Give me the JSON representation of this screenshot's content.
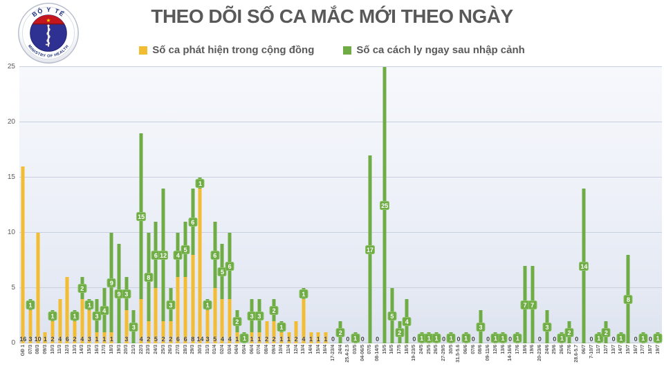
{
  "title": "THEO DÕI SỐ CA MẮC MỚI THEO NGÀY",
  "logo": {
    "top_text": "BỘ Y TẾ",
    "bottom_text": "MINISTRY OF HEALTH"
  },
  "legend": [
    {
      "label": "Số ca phát hiện trong cộng đồng",
      "color": "#f2bc33"
    },
    {
      "label": "Số ca cách ly ngay sau nhập cảnh",
      "color": "#6fac46"
    }
  ],
  "colors": {
    "community": "#f2bc33",
    "imported": "#6fac46",
    "badge_bg": "#6fac46",
    "badge_border": "#8fc468",
    "title_text": "#595959",
    "grid": "#c9cfdc"
  },
  "chart_data": {
    "type": "bar",
    "stacked": true,
    "title": "THEO DÕI SỐ CA MẮC MỚI THEO NGÀY",
    "ylim": [
      0,
      25
    ],
    "yticks": [
      0,
      5,
      10,
      15,
      20,
      25
    ],
    "grid": true,
    "legend_position": "top",
    "series_names": [
      "Số ca phát hiện trong cộng đồng",
      "Số ca cách ly ngay sau nhập cảnh"
    ],
    "bars": [
      {
        "label": "GĐ 1",
        "community": 16,
        "imported": 0
      },
      {
        "label": "07/3",
        "community": 3,
        "imported": 1
      },
      {
        "label": "08/3",
        "community": 10,
        "imported": 0
      },
      {
        "label": "09/3",
        "community": 1,
        "imported": 0
      },
      {
        "label": "10/3",
        "community": 2,
        "imported": 1
      },
      {
        "label": "11/3",
        "community": 4,
        "imported": 0
      },
      {
        "label": "12/3",
        "community": 6,
        "imported": 0
      },
      {
        "label": "13/3",
        "community": 2,
        "imported": 1
      },
      {
        "label": "14/3",
        "community": 4,
        "imported": 2
      },
      {
        "label": "15/3",
        "community": 3,
        "imported": 1
      },
      {
        "label": "16/3",
        "community": 1,
        "imported": 3
      },
      {
        "label": "17/3",
        "community": 1,
        "imported": 4
      },
      {
        "label": "18/3",
        "community": 1,
        "imported": 9
      },
      {
        "label": "19/3",
        "community": 0,
        "imported": 9
      },
      {
        "label": "20/3",
        "community": 3,
        "imported": 3
      },
      {
        "label": "21/3",
        "community": 0,
        "imported": 3
      },
      {
        "label": "22/3",
        "community": 4,
        "imported": 15
      },
      {
        "label": "23/3",
        "community": 2,
        "imported": 8
      },
      {
        "label": "24/3",
        "community": 5,
        "imported": 6
      },
      {
        "label": "25/3",
        "community": 2,
        "imported": 12
      },
      {
        "label": "26/3",
        "community": 2,
        "imported": 3
      },
      {
        "label": "27/3",
        "community": 6,
        "imported": 4
      },
      {
        "label": "28/3",
        "community": 6,
        "imported": 5
      },
      {
        "label": "29/3",
        "community": 8,
        "imported": 6
      },
      {
        "label": "30/3",
        "community": 14,
        "imported": 1
      },
      {
        "label": "31/3",
        "community": 3,
        "imported": 1
      },
      {
        "label": "01/4",
        "community": 5,
        "imported": 6
      },
      {
        "label": "02/4",
        "community": 4,
        "imported": 5
      },
      {
        "label": "03/4",
        "community": 4,
        "imported": 6
      },
      {
        "label": "04/4",
        "community": 1,
        "imported": 2
      },
      {
        "label": "05/4",
        "community": 0,
        "imported": 1
      },
      {
        "label": "06/4",
        "community": 1,
        "imported": 3
      },
      {
        "label": "07/4",
        "community": 1,
        "imported": 3
      },
      {
        "label": "08/4",
        "community": 2,
        "imported": 0
      },
      {
        "label": "09/4",
        "community": 2,
        "imported": 2
      },
      {
        "label": "10/4",
        "community": 1,
        "imported": 1
      },
      {
        "label": "11/4",
        "community": 1,
        "imported": 0
      },
      {
        "label": "12/4",
        "community": 2,
        "imported": 0
      },
      {
        "label": "13/4",
        "community": 4,
        "imported": 1
      },
      {
        "label": "14/4",
        "community": 1,
        "imported": 0
      },
      {
        "label": "15/4",
        "community": 1,
        "imported": 0
      },
      {
        "label": "16/4",
        "community": 1,
        "imported": 0
      },
      {
        "label": "17-23/4",
        "community": 0,
        "imported": 0
      },
      {
        "label": "24/4",
        "community": 0,
        "imported": 2
      },
      {
        "label": "25.4-2.5",
        "community": 0,
        "imported": 0
      },
      {
        "label": "03/5",
        "community": 0,
        "imported": 1
      },
      {
        "label": "04-06/5",
        "community": 0,
        "imported": 0
      },
      {
        "label": "07/5",
        "community": 0,
        "imported": 17
      },
      {
        "label": "08-14/5",
        "community": 0,
        "imported": 0
      },
      {
        "label": "15/5",
        "community": 0,
        "imported": 25
      },
      {
        "label": "16/5",
        "community": 0,
        "imported": 5
      },
      {
        "label": "17/5",
        "community": 0,
        "imported": 2
      },
      {
        "label": "18/5",
        "community": 0,
        "imported": 4
      },
      {
        "label": "19-23/5",
        "community": 0,
        "imported": 0
      },
      {
        "label": "24/5",
        "community": 0,
        "imported": 1
      },
      {
        "label": "25/5",
        "community": 0,
        "imported": 1
      },
      {
        "label": "26/5",
        "community": 0,
        "imported": 1
      },
      {
        "label": "27-29/5",
        "community": 0,
        "imported": 0
      },
      {
        "label": "30/5",
        "community": 0,
        "imported": 1
      },
      {
        "label": "31.5-5.6",
        "community": 0,
        "imported": 0
      },
      {
        "label": "06/6",
        "community": 0,
        "imported": 1
      },
      {
        "label": "07/6",
        "community": 0,
        "imported": 0
      },
      {
        "label": "08/6",
        "community": 0,
        "imported": 3
      },
      {
        "label": "09-11/6",
        "community": 0,
        "imported": 0
      },
      {
        "label": "12/6",
        "community": 0,
        "imported": 1
      },
      {
        "label": "13/6",
        "community": 0,
        "imported": 1
      },
      {
        "label": "14-16/6",
        "community": 0,
        "imported": 0
      },
      {
        "label": "17/6",
        "community": 0,
        "imported": 1
      },
      {
        "label": "18/6",
        "community": 0,
        "imported": 7
      },
      {
        "label": "19/6",
        "community": 0,
        "imported": 7
      },
      {
        "label": "20-23/6",
        "community": 0,
        "imported": 0
      },
      {
        "label": "24/6",
        "community": 0,
        "imported": 3
      },
      {
        "label": "25/6",
        "community": 0,
        "imported": 0
      },
      {
        "label": "26/6",
        "community": 0,
        "imported": 1
      },
      {
        "label": "27/6",
        "community": 0,
        "imported": 2
      },
      {
        "label": "28.6-5.7",
        "community": 0,
        "imported": 0
      },
      {
        "label": "06/7",
        "community": 0,
        "imported": 14
      },
      {
        "label": "7-10/7",
        "community": 0,
        "imported": 0
      },
      {
        "label": "11/7",
        "community": 0,
        "imported": 1
      },
      {
        "label": "12/7",
        "community": 0,
        "imported": 2
      },
      {
        "label": "13/7",
        "community": 0,
        "imported": 0
      },
      {
        "label": "14/7",
        "community": 0,
        "imported": 1
      },
      {
        "label": "15/7",
        "community": 0,
        "imported": 8
      },
      {
        "label": "16/7",
        "community": 0,
        "imported": 0
      },
      {
        "label": "17/7",
        "community": 0,
        "imported": 1
      },
      {
        "label": "18/7",
        "community": 0,
        "imported": 0
      },
      {
        "label": "19/7",
        "community": 0,
        "imported": 1
      }
    ]
  }
}
